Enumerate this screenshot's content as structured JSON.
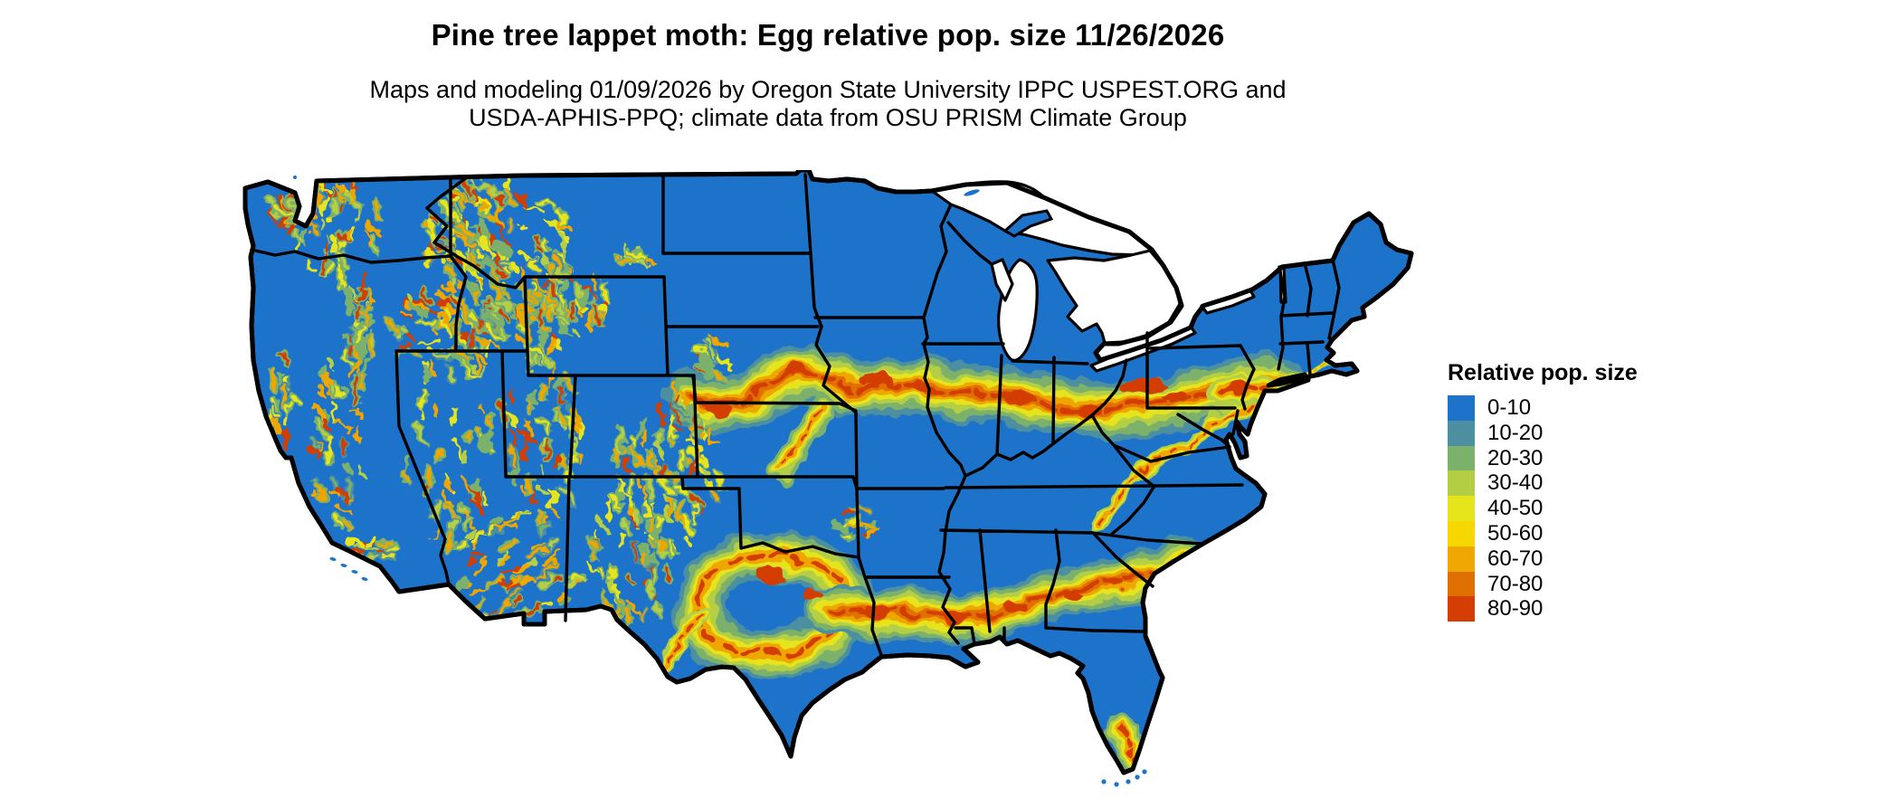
{
  "title": "Pine tree lappet moth: Egg relative pop. size 11/26/2026",
  "subtitle": {
    "line1": "Maps and modeling 01/09/2026 by Oregon State University IPPC USPEST.ORG and",
    "line2": "USDA-APHIS-PPQ; climate data from OSU PRISM Climate Group"
  },
  "legend": {
    "title": "Relative pop. size",
    "entries": [
      {
        "label": "0-10",
        "color": "#1d73c9"
      },
      {
        "label": "10-20",
        "color": "#4b8fa0"
      },
      {
        "label": "20-30",
        "color": "#7cb16c"
      },
      {
        "label": "30-40",
        "color": "#b4ce44"
      },
      {
        "label": "40-50",
        "color": "#e6e41b"
      },
      {
        "label": "50-60",
        "color": "#f6d800"
      },
      {
        "label": "60-70",
        "color": "#efa702"
      },
      {
        "label": "70-80",
        "color": "#e06f02"
      },
      {
        "label": "80-90",
        "color": "#d43e04"
      }
    ]
  },
  "map": {
    "region": "Contiguous United States",
    "base_color": "#1d73c9",
    "border_color": "#000000",
    "water_color": "#ffffff"
  }
}
